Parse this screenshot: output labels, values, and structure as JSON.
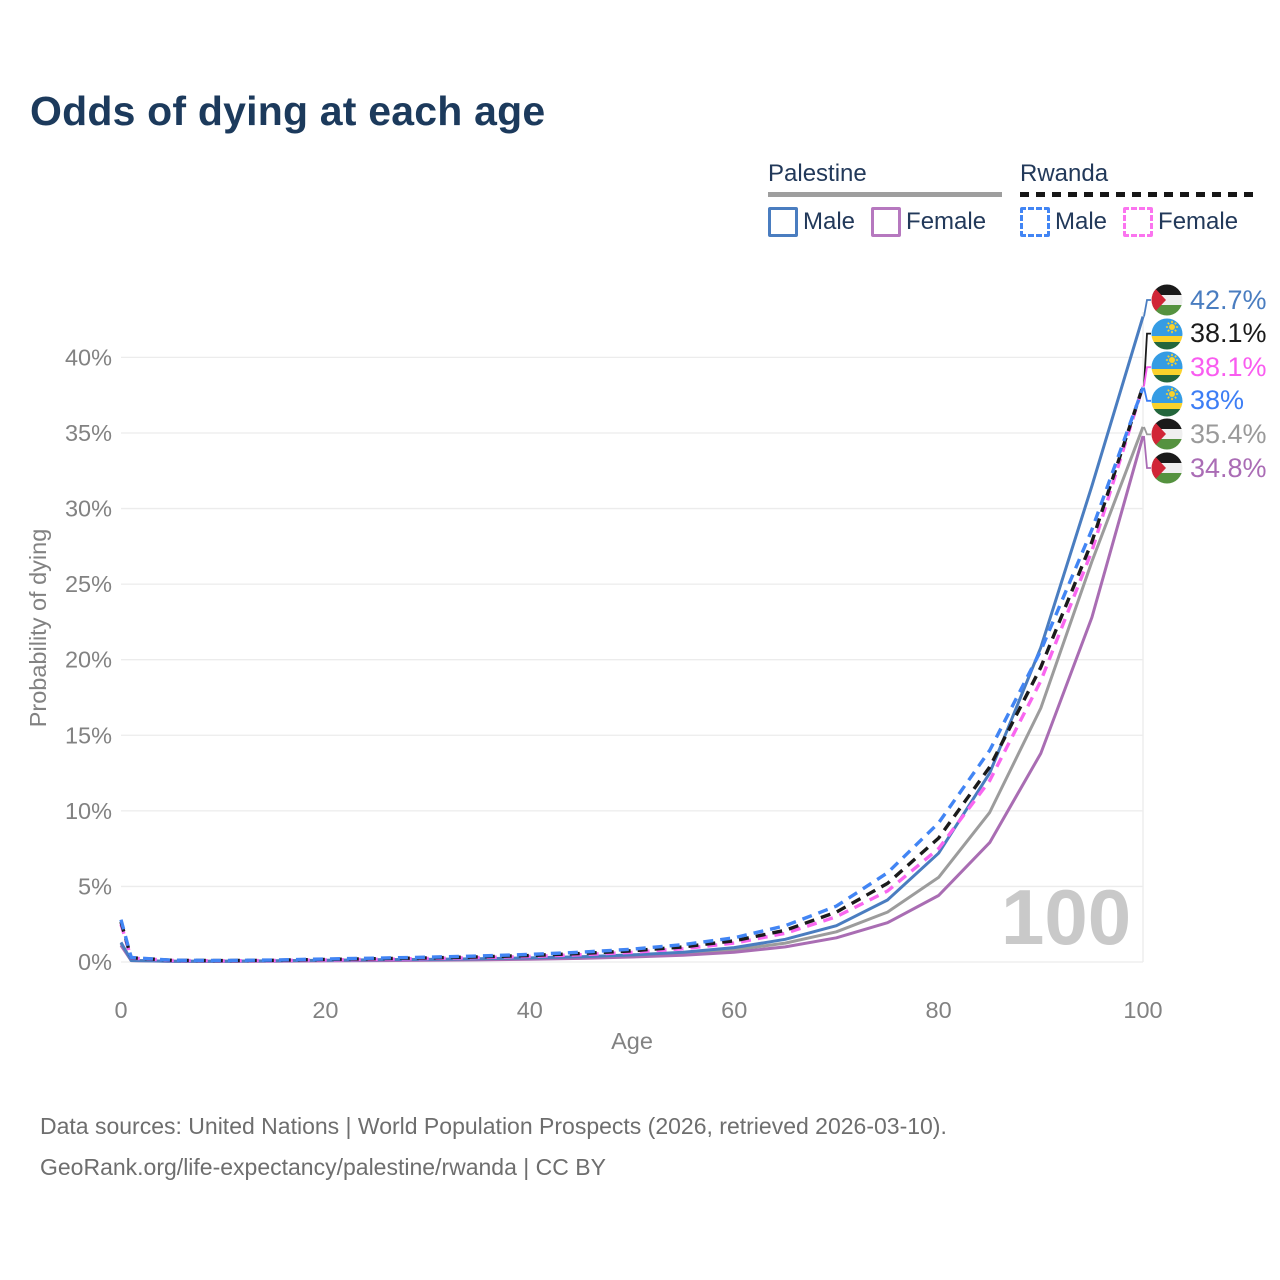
{
  "title": "Odds of dying at each age",
  "watermark": "100",
  "legend": {
    "groups": [
      {
        "name": "Palestine",
        "line_style": "solid",
        "underline_color": "#9e9e9e",
        "items": [
          {
            "label": "Male",
            "color": "#4a7dc0",
            "dashed": false
          },
          {
            "label": "Female",
            "color": "#b678bf",
            "dashed": false
          }
        ]
      },
      {
        "name": "Rwanda",
        "line_style": "dashed",
        "underline_color": "#161616",
        "items": [
          {
            "label": "Male",
            "color": "#4285f4",
            "dashed": true
          },
          {
            "label": "Female",
            "color": "#fb74ef",
            "dashed": true
          }
        ]
      }
    ]
  },
  "footer": {
    "line1": "Data sources: United Nations | World Population Prospects (2026, retrieved 2026-03-10).",
    "line2": "GeoRank.org/life-expectancy/palestine/rwanda | CC BY"
  },
  "chart_data": {
    "type": "line",
    "title": "Odds of dying at each age",
    "xlabel": "Age",
    "ylabel": "Probability of dying",
    "xlim": [
      0,
      100
    ],
    "ylim": [
      0,
      44
    ],
    "xticks": [
      0,
      20,
      40,
      60,
      80,
      100
    ],
    "yticks": [
      0,
      5,
      10,
      15,
      20,
      25,
      30,
      35,
      40
    ],
    "grid": "horizontal",
    "legend_position": "top-right",
    "x": [
      0,
      1,
      5,
      10,
      15,
      20,
      25,
      30,
      35,
      40,
      45,
      50,
      55,
      60,
      65,
      70,
      75,
      80,
      85,
      90,
      95,
      100
    ],
    "series": [
      {
        "name": "Palestine Both",
        "country": "Palestine",
        "sex": "Both",
        "color": "#9c9c9c",
        "dashed": false,
        "values": [
          1.2,
          0.1,
          0.05,
          0.05,
          0.06,
          0.1,
          0.12,
          0.14,
          0.17,
          0.22,
          0.3,
          0.4,
          0.55,
          0.8,
          1.25,
          2.0,
          3.3,
          5.6,
          9.9,
          16.8,
          26.5,
          35.4
        ]
      },
      {
        "name": "Palestine Female",
        "country": "Palestine",
        "sex": "Female",
        "color": "#a96db3",
        "dashed": false,
        "values": [
          1.1,
          0.09,
          0.04,
          0.04,
          0.05,
          0.07,
          0.09,
          0.11,
          0.14,
          0.18,
          0.24,
          0.33,
          0.45,
          0.65,
          1.0,
          1.6,
          2.6,
          4.4,
          7.9,
          13.8,
          22.8,
          34.8
        ]
      },
      {
        "name": "Palestine Male",
        "country": "Palestine",
        "sex": "Male",
        "color": "#4a7dc0",
        "dashed": false,
        "values": [
          1.3,
          0.1,
          0.05,
          0.05,
          0.08,
          0.12,
          0.15,
          0.17,
          0.21,
          0.27,
          0.35,
          0.47,
          0.65,
          0.95,
          1.5,
          2.4,
          4.1,
          7.2,
          12.5,
          20.8,
          31.5,
          42.7
        ]
      },
      {
        "name": "Rwanda Female",
        "country": "Rwanda",
        "sex": "Female",
        "color": "#f966ef",
        "dashed": true,
        "values": [
          2.5,
          0.26,
          0.1,
          0.08,
          0.1,
          0.14,
          0.18,
          0.23,
          0.29,
          0.37,
          0.48,
          0.64,
          0.88,
          1.25,
          1.9,
          3.0,
          4.7,
          7.5,
          12.0,
          18.6,
          27.2,
          38.1
        ]
      },
      {
        "name": "Rwanda Both",
        "country": "Rwanda",
        "sex": "Both",
        "color": "#1b1b1b",
        "dashed": true,
        "values": [
          2.65,
          0.28,
          0.11,
          0.09,
          0.11,
          0.17,
          0.22,
          0.27,
          0.34,
          0.43,
          0.56,
          0.74,
          1.0,
          1.4,
          2.1,
          3.3,
          5.2,
          8.2,
          12.9,
          19.5,
          27.8,
          38.1
        ]
      },
      {
        "name": "Rwanda Male",
        "country": "Rwanda",
        "sex": "Male",
        "color": "#4285f4",
        "dashed": true,
        "values": [
          2.8,
          0.3,
          0.12,
          0.1,
          0.13,
          0.2,
          0.26,
          0.32,
          0.4,
          0.5,
          0.65,
          0.85,
          1.15,
          1.6,
          2.4,
          3.7,
          5.9,
          9.2,
          14.0,
          20.6,
          28.6,
          38.0
        ]
      }
    ],
    "end_labels": [
      {
        "text": "42.7%",
        "value": 42.7,
        "color": "#4a7dc0",
        "country": "palestine",
        "series": "Palestine Male"
      },
      {
        "text": "38.1%",
        "value": 38.1,
        "color": "#1b1b1b",
        "country": "rwanda",
        "series": "Rwanda Both"
      },
      {
        "text": "38.1%",
        "value": 38.1,
        "color": "#f95cf0",
        "country": "rwanda",
        "series": "Rwanda Female"
      },
      {
        "text": "38%",
        "value": 38.0,
        "color": "#3d7ef5",
        "country": "rwanda",
        "series": "Rwanda Male"
      },
      {
        "text": "35.4%",
        "value": 35.4,
        "color": "#9a9a9a",
        "country": "palestine",
        "series": "Palestine Both"
      },
      {
        "text": "34.8%",
        "value": 34.8,
        "color": "#aa6cb5",
        "country": "palestine",
        "series": "Palestine Female"
      }
    ]
  }
}
